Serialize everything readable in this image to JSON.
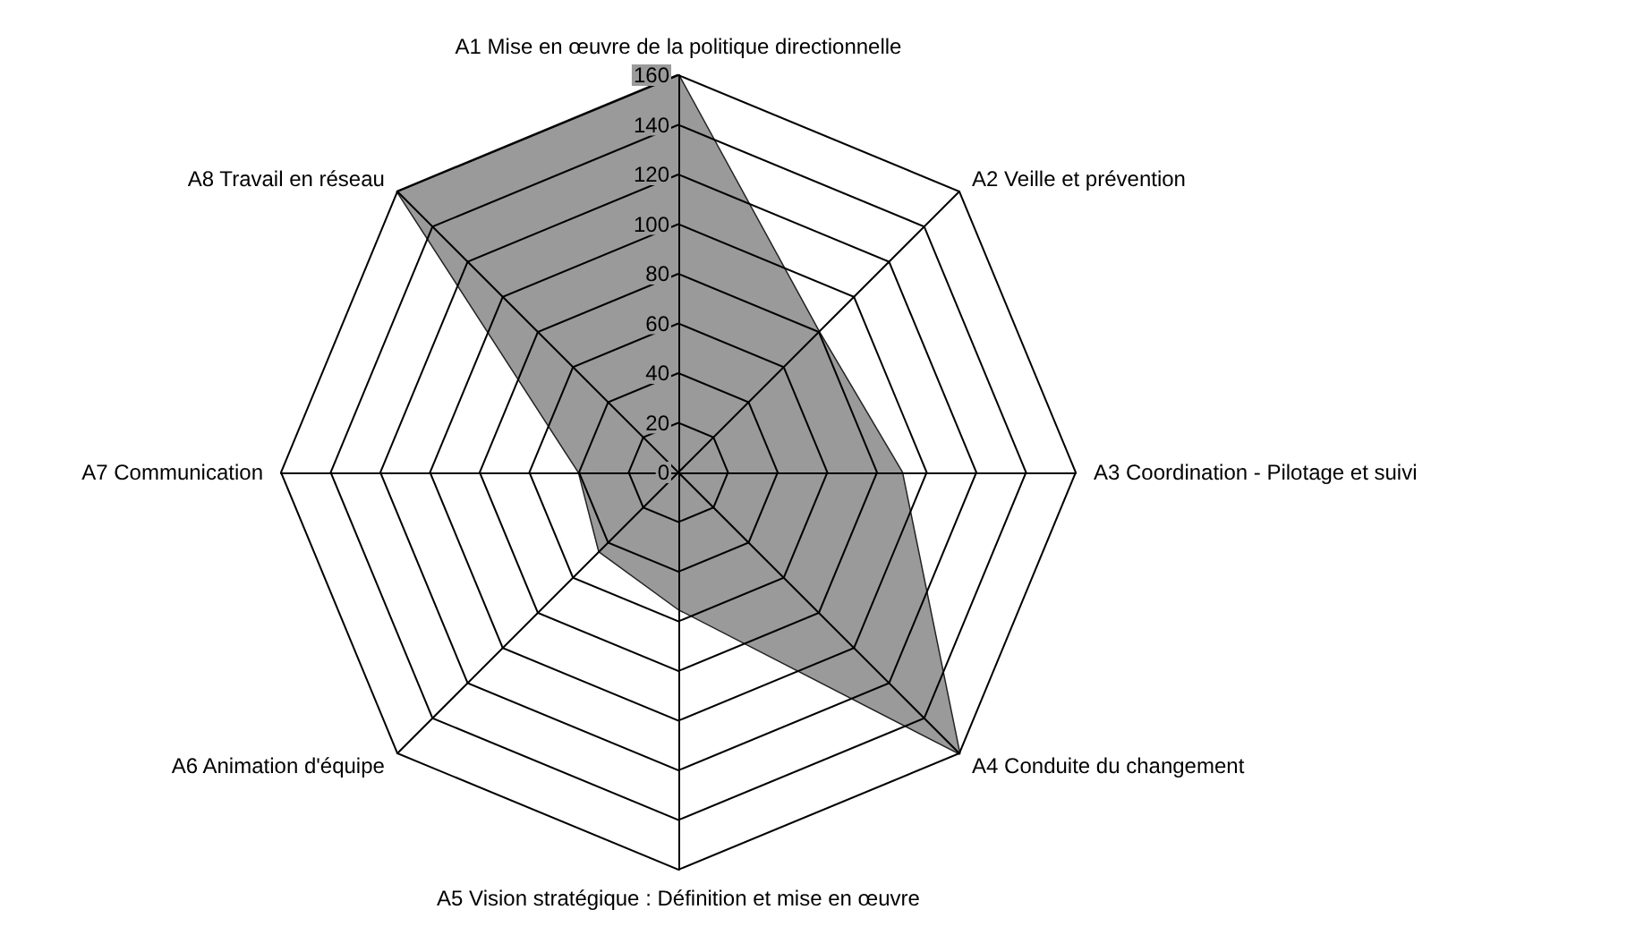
{
  "chart_data": {
    "type": "radar",
    "categories": [
      "A1 Mise en œuvre de la politique directionnelle",
      "A2 Veille et prévention",
      "A3 Coordination - Pilotage et suivi",
      "A4 Conduite du changement",
      "A5 Vision stratégique : Définition et mise en œuvre",
      "A6 Animation d'équipe",
      "A7 Communication",
      "A8 Travail en réseau"
    ],
    "series": [
      {
        "color": "#9a9a9a",
        "values": [
          160,
          80,
          90,
          160,
          55,
          45,
          40,
          160
        ]
      }
    ],
    "ylim": [
      0,
      160
    ],
    "yticks": [
      0,
      20,
      40,
      60,
      80,
      100,
      120,
      140,
      160
    ],
    "grid": true
  }
}
